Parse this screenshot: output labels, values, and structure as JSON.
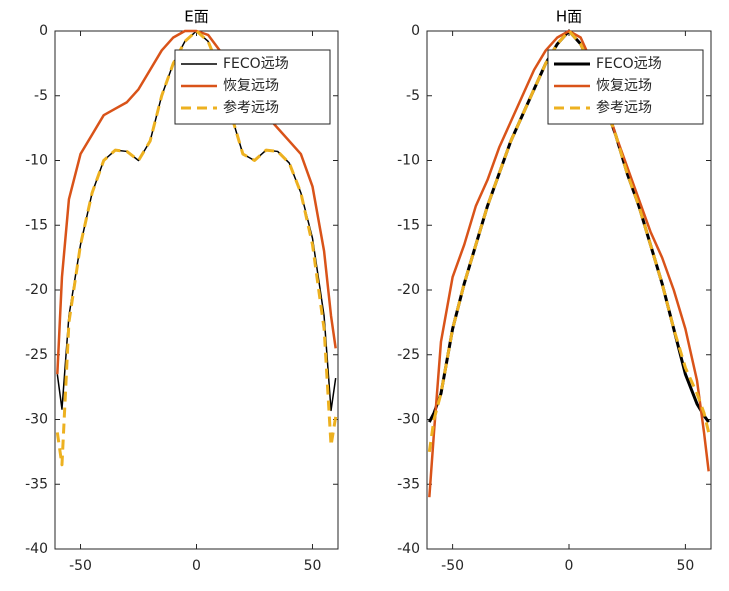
{
  "chart_data": [
    {
      "type": "line",
      "title": "E面",
      "x": [
        -60,
        -58,
        -55,
        -50,
        -45,
        -40,
        -35,
        -30,
        -25,
        -20,
        -15,
        -10,
        -5,
        0,
        5,
        10,
        15,
        20,
        25,
        30,
        35,
        40,
        45,
        50,
        55,
        58,
        60
      ],
      "series": [
        {
          "name": "FECO远场",
          "color": "#000000",
          "linewidth": 1.5,
          "dashed": false,
          "values": [
            -26.5,
            -29.2,
            -22,
            -16.5,
            -12.5,
            -10,
            -9.2,
            -9.3,
            -10,
            -8.5,
            -5,
            -2.5,
            -0.8,
            0,
            -0.8,
            -3,
            -6.5,
            -9.5,
            -10,
            -9.2,
            -9.3,
            -10.2,
            -12.5,
            -16,
            -22,
            -29.3,
            -26.8
          ]
        },
        {
          "name": "恢复远场",
          "color": "#d95319",
          "linewidth": 2.5,
          "dashed": false,
          "values": [
            -26.5,
            -19,
            -13,
            -9.5,
            -8,
            -6.5,
            -6,
            -5.5,
            -4.5,
            -3,
            -1.5,
            -0.5,
            0,
            0,
            -0.3,
            -1.5,
            -3,
            -4.5,
            -5.5,
            -6.5,
            -7.5,
            -8.5,
            -9.5,
            -12,
            -17,
            -22,
            -24.5
          ]
        },
        {
          "name": "参考远场",
          "color": "#edb120",
          "linewidth": 3,
          "dashed": true,
          "values": [
            -31,
            -33.5,
            -22.5,
            -16.5,
            -12.5,
            -10,
            -9.2,
            -9.3,
            -10,
            -8.5,
            -5,
            -2.5,
            -0.8,
            0,
            -0.8,
            -3,
            -6.5,
            -9.5,
            -10,
            -9.2,
            -9.3,
            -10.2,
            -12.5,
            -16.5,
            -23,
            -32,
            -29.8
          ]
        }
      ],
      "xlim": [
        -61,
        61
      ],
      "xticks": [
        -50,
        0,
        50
      ],
      "ylim": [
        -40,
        0
      ],
      "yticks": [
        0,
        -5,
        -10,
        -15,
        -20,
        -25,
        -30,
        -35,
        -40
      ],
      "legend": "northeast"
    },
    {
      "type": "line",
      "title": "H面",
      "x": [
        -60,
        -58,
        -55,
        -50,
        -45,
        -40,
        -35,
        -30,
        -25,
        -20,
        -15,
        -10,
        -5,
        0,
        5,
        10,
        15,
        20,
        25,
        30,
        35,
        40,
        45,
        50,
        55,
        58,
        60
      ],
      "series": [
        {
          "name": "FECO远场",
          "color": "#000000",
          "linewidth": 3,
          "dashed": false,
          "values": [
            -30.2,
            -29.5,
            -28,
            -23,
            -19.5,
            -16.5,
            -13.5,
            -11,
            -8.5,
            -6.5,
            -4.5,
            -2.5,
            -1,
            0,
            -1,
            -3,
            -5.5,
            -8,
            -11,
            -13.5,
            -16.5,
            -19.5,
            -23,
            -26.5,
            -28.8,
            -29.7,
            -30.2
          ]
        },
        {
          "name": "恢复远场",
          "color": "#d95319",
          "linewidth": 2.5,
          "dashed": false,
          "values": [
            -36,
            -31,
            -24,
            -19,
            -16.5,
            -13.5,
            -11.5,
            -9,
            -7,
            -5,
            -3,
            -1.5,
            -0.5,
            0,
            -0.5,
            -2.5,
            -5,
            -8,
            -10.5,
            -13,
            -15.5,
            -17.5,
            -20,
            -23,
            -27,
            -31,
            -34
          ]
        },
        {
          "name": "参考远场",
          "color": "#edb120",
          "linewidth": 3,
          "dashed": true,
          "values": [
            -32.5,
            -30,
            -28,
            -23,
            -19.5,
            -16.5,
            -13.5,
            -11,
            -8.5,
            -6.5,
            -4.5,
            -2.5,
            -1,
            0,
            -1,
            -3,
            -5.5,
            -8,
            -11,
            -13.5,
            -16.5,
            -19.5,
            -23,
            -26,
            -28,
            -29.5,
            -31
          ]
        }
      ],
      "xlim": [
        -61,
        61
      ],
      "xticks": [
        -50,
        0,
        50
      ],
      "ylim": [
        -40,
        0
      ],
      "yticks": [
        0,
        -5,
        -10,
        -15,
        -20,
        -25,
        -30,
        -35,
        -40
      ],
      "legend": "northeast"
    }
  ]
}
